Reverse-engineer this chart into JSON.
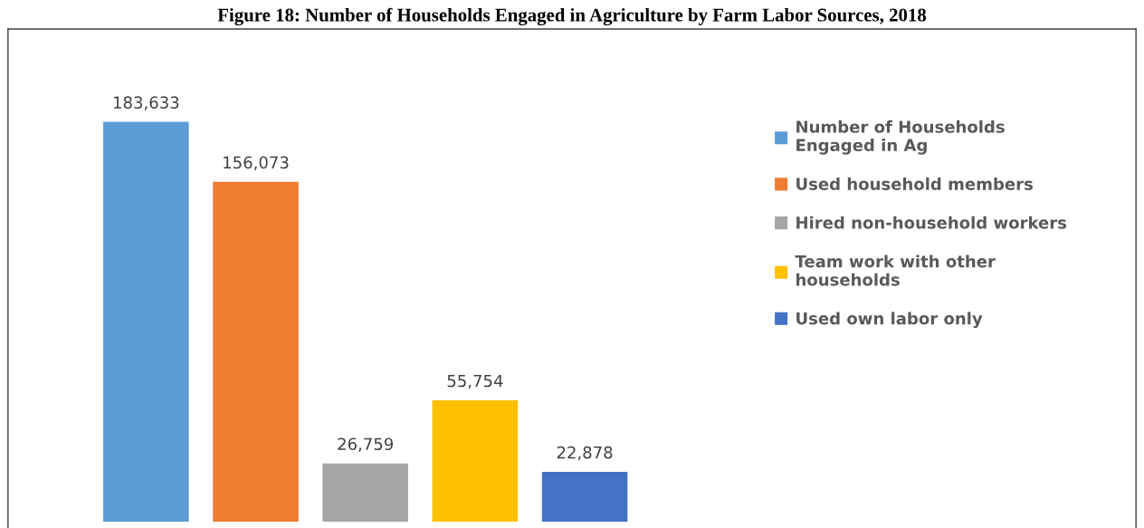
{
  "chart_data": {
    "type": "bar",
    "title": "Figure 18: Number of Households Engaged in Agriculture by Farm Labor Sources, 2018",
    "categories": [
      null
    ],
    "series": [
      {
        "name": "Number of Households Engaged in Ag",
        "color": "#5b9bd5",
        "values": [
          183633
        ],
        "value_labels": [
          "183,633"
        ]
      },
      {
        "name": "Used household members",
        "color": "#ed7d31",
        "values": [
          156073
        ],
        "value_labels": [
          "156,073"
        ]
      },
      {
        "name": "Hired non-household workers",
        "color": "#a5a5a5",
        "values": [
          26759
        ],
        "value_labels": [
          "26,759"
        ]
      },
      {
        "name": "Team work with other households",
        "color": "#ffc000",
        "values": [
          55754
        ],
        "value_labels": [
          "55,754"
        ]
      },
      {
        "name": "Used own labor only",
        "color": "#4472c4",
        "values": [
          22878
        ],
        "value_labels": [
          "22,878"
        ]
      }
    ],
    "legend": "right",
    "grid": false,
    "tick_labels": false
  }
}
